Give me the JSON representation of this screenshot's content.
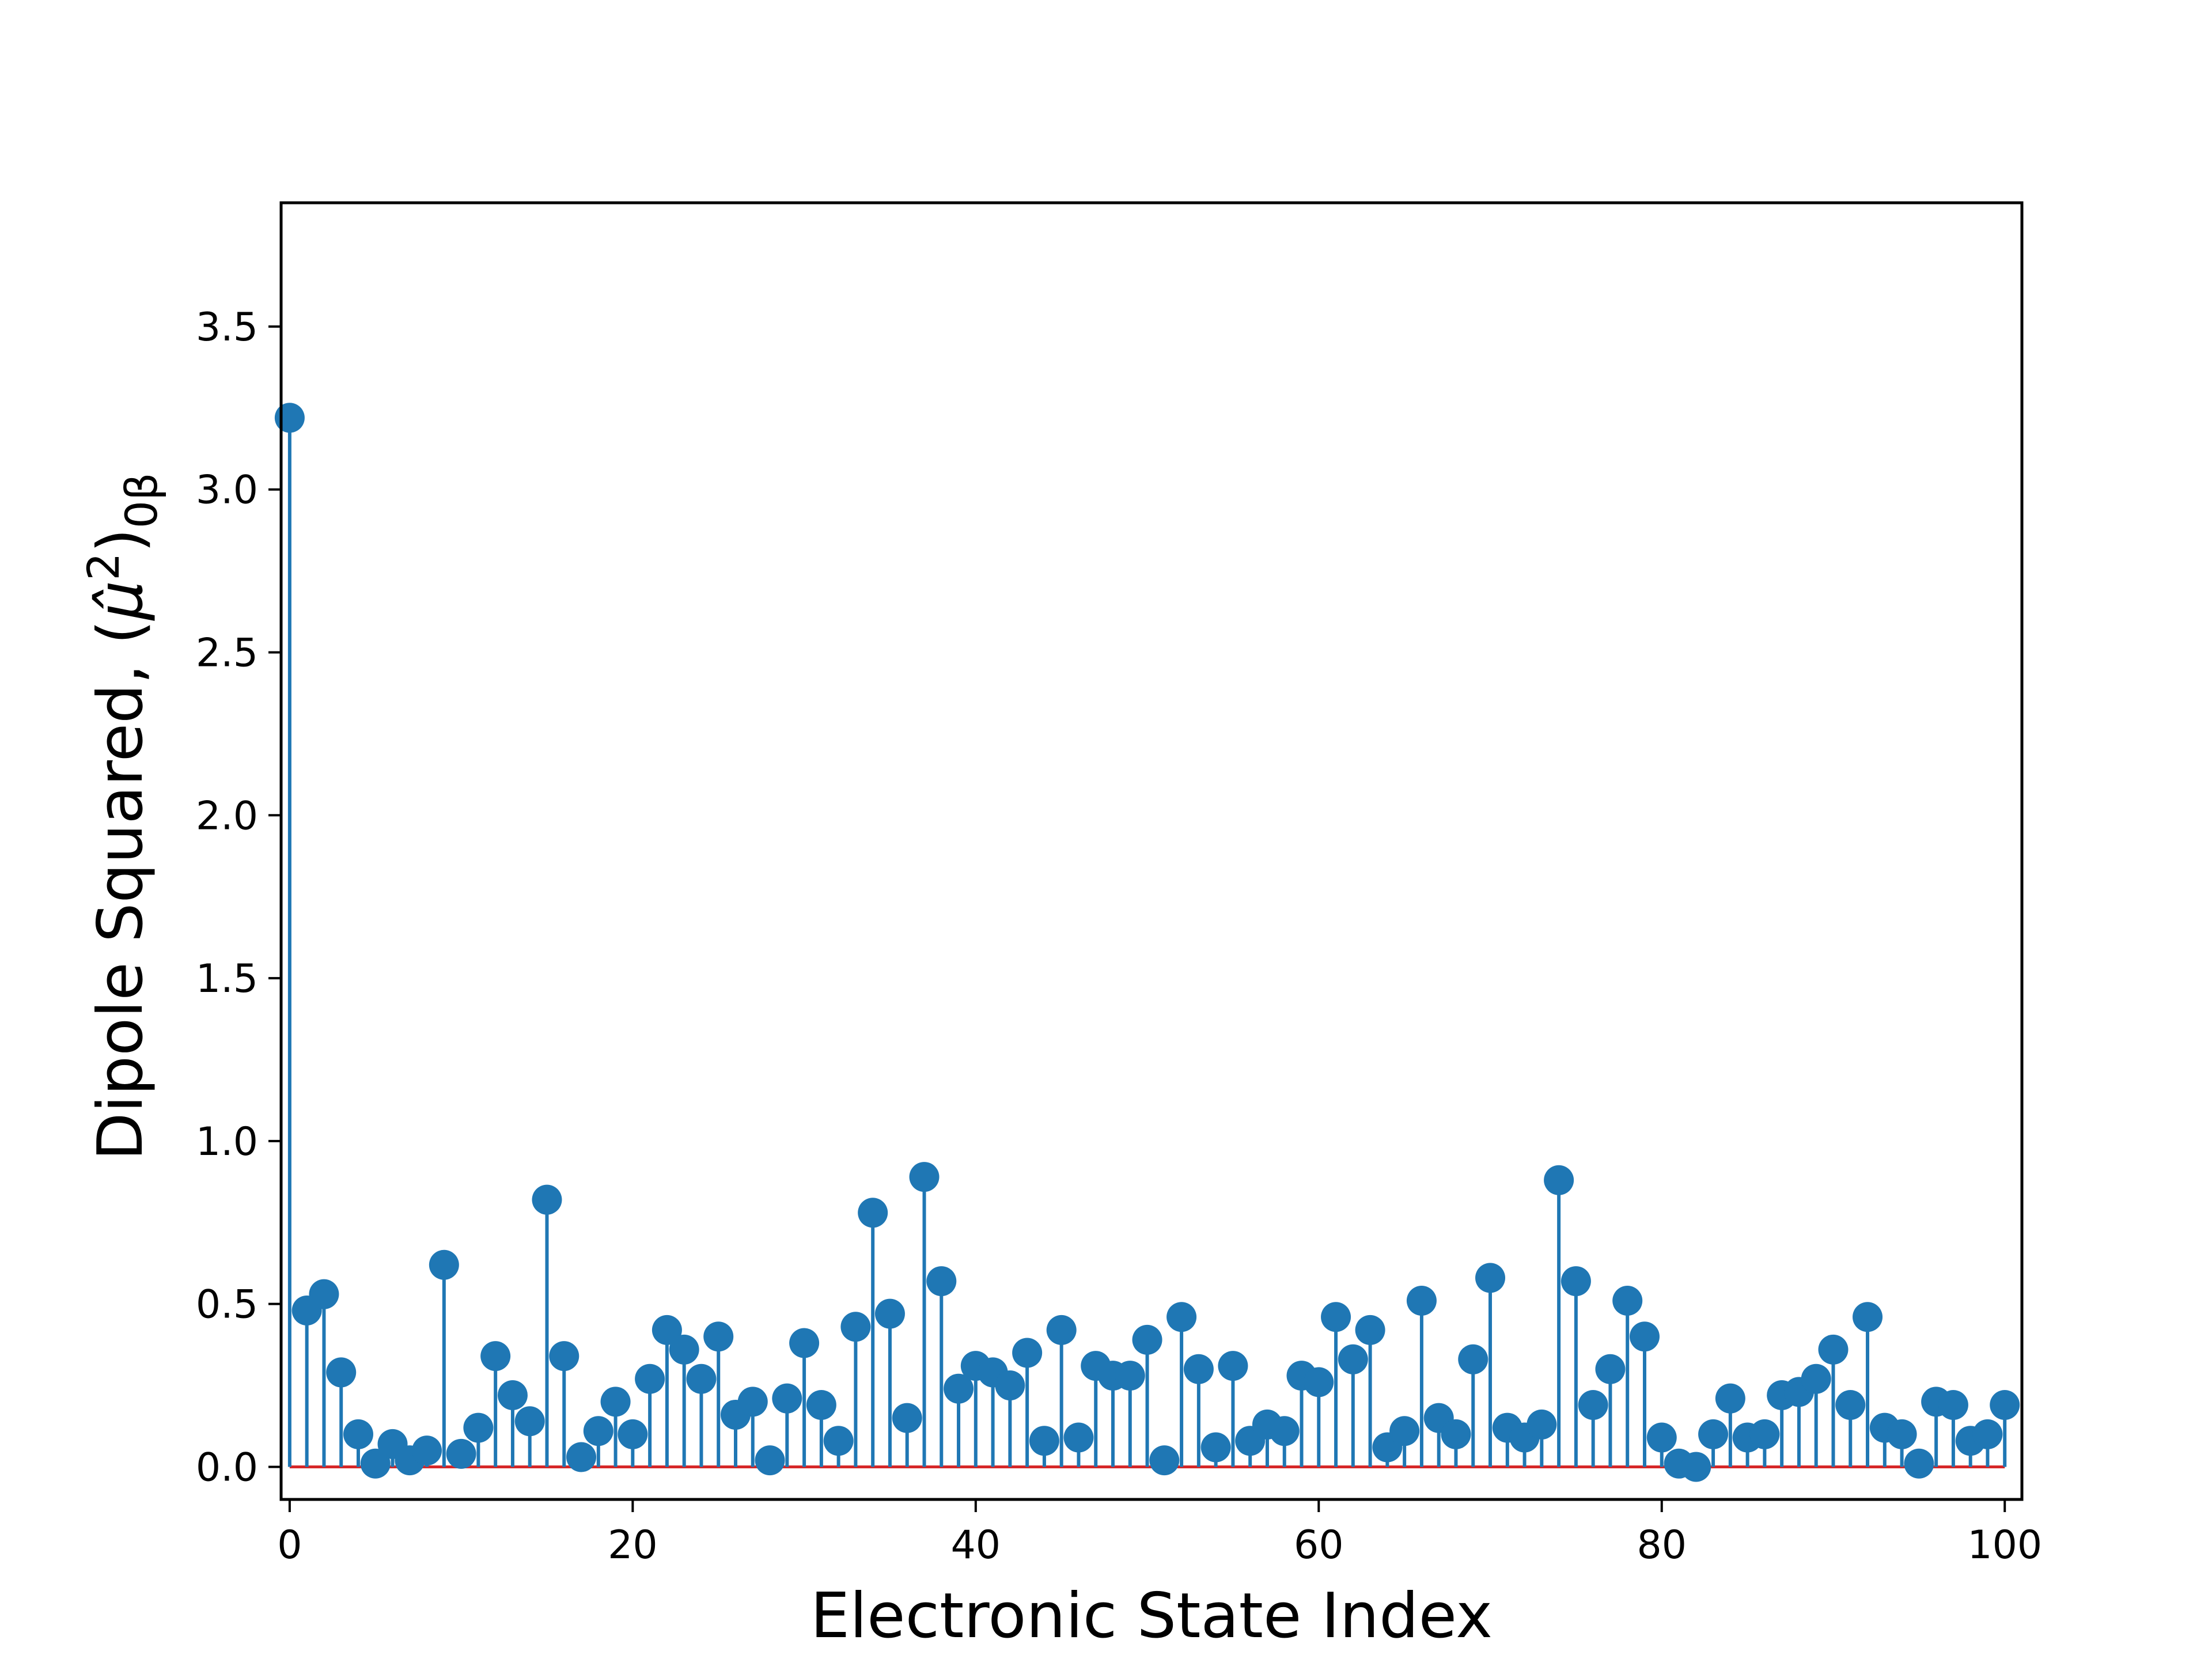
{
  "chart_data": {
    "type": "stem",
    "xlabel": "Electronic State Index",
    "ylabel": {
      "text": "Dipole Squared, (",
      "mu": "μ̂",
      "sup": "2",
      "close": ")",
      "sub": "0β"
    },
    "xlim": [
      -0.5,
      101.0
    ],
    "ylim": [
      -0.1,
      3.88
    ],
    "xticks": [
      0,
      20,
      40,
      60,
      80,
      100
    ],
    "yticks": [
      0.0,
      0.5,
      1.0,
      1.5,
      2.0,
      2.5,
      3.0,
      3.5
    ],
    "xtick_labels": [
      "0",
      "20",
      "40",
      "60",
      "80",
      "100"
    ],
    "ytick_labels": [
      "0.0",
      "0.5",
      "1.0",
      "1.5",
      "2.0",
      "2.5",
      "3.0",
      "3.5"
    ],
    "baseline": 0,
    "color": "#1f77b4",
    "x": [
      0,
      1,
      2,
      3,
      4,
      5,
      6,
      7,
      8,
      9,
      10,
      11,
      12,
      13,
      14,
      15,
      16,
      17,
      18,
      19,
      20,
      21,
      22,
      23,
      24,
      25,
      26,
      27,
      28,
      29,
      30,
      31,
      32,
      33,
      34,
      35,
      36,
      37,
      38,
      39,
      40,
      41,
      42,
      43,
      44,
      45,
      46,
      47,
      48,
      49,
      50,
      51,
      52,
      53,
      54,
      55,
      56,
      57,
      58,
      59,
      60,
      61,
      62,
      63,
      64,
      65,
      66,
      67,
      68,
      69,
      70,
      71,
      72,
      73,
      74,
      75,
      76,
      77,
      78,
      79,
      80,
      81,
      82,
      83,
      84,
      85,
      86,
      87,
      88,
      89,
      90,
      91,
      92,
      93,
      94,
      95,
      96,
      97,
      98,
      99,
      100
    ],
    "values": [
      3.22,
      0.48,
      0.53,
      0.29,
      0.1,
      0.01,
      0.07,
      0.02,
      0.05,
      0.62,
      0.04,
      0.12,
      0.34,
      0.22,
      0.14,
      0.82,
      0.34,
      0.03,
      0.11,
      0.2,
      0.1,
      0.27,
      0.42,
      0.36,
      0.27,
      0.4,
      0.16,
      0.2,
      0.02,
      0.21,
      0.38,
      0.19,
      0.08,
      0.43,
      0.78,
      0.47,
      0.15,
      0.89,
      0.57,
      0.24,
      0.31,
      0.29,
      0.25,
      0.35,
      0.08,
      0.42,
      0.09,
      0.31,
      0.28,
      0.28,
      0.39,
      0.02,
      0.46,
      0.3,
      0.06,
      0.31,
      0.08,
      0.13,
      0.11,
      0.28,
      0.26,
      0.46,
      0.33,
      0.42,
      0.06,
      0.11,
      0.51,
      0.15,
      0.1,
      0.33,
      0.58,
      0.12,
      0.09,
      0.13,
      0.88,
      0.57,
      0.19,
      0.3,
      0.51,
      0.4,
      0.09,
      0.01,
      0.0,
      0.1,
      0.21,
      0.09,
      0.1,
      0.22,
      0.23,
      0.27,
      0.36,
      0.19,
      0.46,
      0.12,
      0.1,
      0.01,
      0.2,
      0.19,
      0.08,
      0.1,
      0.19
    ]
  }
}
